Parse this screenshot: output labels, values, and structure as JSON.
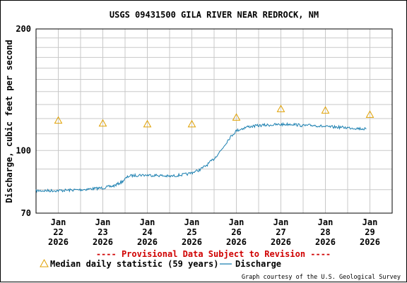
{
  "chart_data": {
    "type": "line",
    "title": "USGS 09431500 GILA RIVER NEAR REDROCK, NM",
    "ylabel": "Discharge, cubic feet per second",
    "xlabel": "",
    "y_scale": "log",
    "ylim": [
      70,
      200
    ],
    "y_ticks": [
      "70",
      "100",
      "200"
    ],
    "x_ticks": [
      {
        "month": "Jan",
        "day": "22",
        "year": "2026"
      },
      {
        "month": "Jan",
        "day": "23",
        "year": "2026"
      },
      {
        "month": "Jan",
        "day": "24",
        "year": "2026"
      },
      {
        "month": "Jan",
        "day": "25",
        "year": "2026"
      },
      {
        "month": "Jan",
        "day": "26",
        "year": "2026"
      },
      {
        "month": "Jan",
        "day": "27",
        "year": "2026"
      },
      {
        "month": "Jan",
        "day": "28",
        "year": "2026"
      },
      {
        "month": "Jan",
        "day": "29",
        "year": "2026"
      }
    ],
    "grid": true,
    "provisional_note": "---- Provisional Data Subject to Revision ----",
    "credit": "Graph courtesy of the U.S. Geological Survey",
    "colors": {
      "median": "#e0a000",
      "discharge": "#1a7fb0",
      "provisional": "#d00000",
      "grid": "#c8c8c8"
    },
    "series": [
      {
        "name": "Median daily statistic (59 years)",
        "marker": "triangle",
        "points": [
          {
            "x": "2026-01-22",
            "y": 119
          },
          {
            "x": "2026-01-23",
            "y": 117
          },
          {
            "x": "2026-01-24",
            "y": 116.5
          },
          {
            "x": "2026-01-25",
            "y": 116.5
          },
          {
            "x": "2026-01-26",
            "y": 121
          },
          {
            "x": "2026-01-27",
            "y": 127
          },
          {
            "x": "2026-01-28",
            "y": 126
          },
          {
            "x": "2026-01-29",
            "y": 123
          }
        ]
      },
      {
        "name": "Discharge",
        "marker": "line",
        "points": [
          {
            "x": "2026-01-21 12:00",
            "y": 79.5
          },
          {
            "x": "2026-01-22 00:00",
            "y": 79.6
          },
          {
            "x": "2026-01-22 12:00",
            "y": 80.0
          },
          {
            "x": "2026-01-23 00:00",
            "y": 80.8
          },
          {
            "x": "2026-01-23 06:00",
            "y": 81.8
          },
          {
            "x": "2026-01-23 10:00",
            "y": 83.5
          },
          {
            "x": "2026-01-23 14:00",
            "y": 86.5
          },
          {
            "x": "2026-01-23 20:00",
            "y": 87.0
          },
          {
            "x": "2026-01-24 06:00",
            "y": 86.8
          },
          {
            "x": "2026-01-24 12:00",
            "y": 86.3
          },
          {
            "x": "2026-01-24 22:00",
            "y": 87.5
          },
          {
            "x": "2026-01-25 04:00",
            "y": 89.5
          },
          {
            "x": "2026-01-25 08:00",
            "y": 92.0
          },
          {
            "x": "2026-01-25 12:00",
            "y": 95.5
          },
          {
            "x": "2026-01-25 16:00",
            "y": 100.5
          },
          {
            "x": "2026-01-25 20:00",
            "y": 107.0
          },
          {
            "x": "2026-01-26 00:00",
            "y": 112.0
          },
          {
            "x": "2026-01-26 06:00",
            "y": 114.5
          },
          {
            "x": "2026-01-26 14:00",
            "y": 115.5
          },
          {
            "x": "2026-01-27 00:00",
            "y": 116.0
          },
          {
            "x": "2026-01-27 06:00",
            "y": 116.3
          },
          {
            "x": "2026-01-27 12:00",
            "y": 115.2
          },
          {
            "x": "2026-01-27 18:00",
            "y": 115.5
          },
          {
            "x": "2026-01-28 00:00",
            "y": 114.5
          },
          {
            "x": "2026-01-28 08:00",
            "y": 114.2
          },
          {
            "x": "2026-01-28 16:00",
            "y": 113.6
          },
          {
            "x": "2026-01-28 22:00",
            "y": 113.0
          }
        ]
      }
    ]
  }
}
